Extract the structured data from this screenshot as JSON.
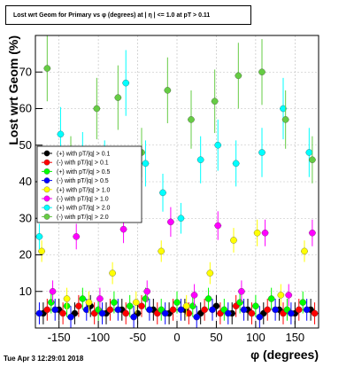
{
  "title": "Lost wrt Geom for Primary vs φ (degrees) at | η | <= 1.0 at pT > 0.11",
  "footer": "Tue Apr  3 12:29:01 2018",
  "chart_data": {
    "type": "scatter",
    "xlabel": "φ (degrees)",
    "ylabel": "Lost wrt Geom (%)",
    "xlim": [
      -180,
      180
    ],
    "ylim": [
      0,
      80
    ],
    "xticks": [
      -150,
      -100,
      -50,
      0,
      50,
      100,
      150
    ],
    "yticks": [
      10,
      20,
      30,
      40,
      50,
      60,
      70
    ],
    "grid": true,
    "legend_position": "left-center",
    "series": [
      {
        "name": "(+) with pT/|q| > 0.1",
        "color": "#000000",
        "x": [
          -170,
          -150,
          -130,
          -110,
          -90,
          -70,
          -50,
          -30,
          -10,
          10,
          30,
          50,
          70,
          90,
          110,
          130,
          150,
          170
        ],
        "y": [
          4,
          5,
          4,
          6,
          4,
          5,
          4,
          5,
          4,
          5,
          4,
          6,
          4,
          5,
          4,
          5,
          4,
          5
        ]
      },
      {
        "name": "(-) with pT/|q| > 0.1",
        "color": "#ff0000",
        "x": [
          -165,
          -145,
          -125,
          -105,
          -85,
          -65,
          -45,
          -25,
          -5,
          15,
          35,
          55,
          75,
          95,
          115,
          135,
          155,
          175
        ],
        "y": [
          5,
          4,
          6,
          4,
          5,
          4,
          6,
          4,
          5,
          4,
          5,
          4,
          6,
          4,
          5,
          4,
          5,
          4
        ]
      },
      {
        "name": "(+) with pT/|q| > 0.5",
        "color": "#00ff00",
        "x": [
          -160,
          -140,
          -120,
          -100,
          -80,
          -60,
          -40,
          -20,
          0,
          20,
          40,
          60,
          80,
          100,
          120,
          140,
          160
        ],
        "y": [
          7,
          6,
          8,
          5,
          7,
          6,
          8,
          5,
          7,
          6,
          8,
          5,
          7,
          6,
          8,
          5,
          7
        ]
      },
      {
        "name": "(-) with pT/|q| > 0.5",
        "color": "#0000ff",
        "x": [
          -175,
          -155,
          -135,
          -115,
          -95,
          -75,
          -55,
          -35,
          -15,
          5,
          25,
          45,
          65,
          85,
          105,
          125,
          145,
          165
        ],
        "y": [
          4,
          5,
          3,
          5,
          4,
          5,
          3,
          5,
          4,
          5,
          3,
          5,
          4,
          5,
          3,
          5,
          4,
          5
        ]
      },
      {
        "name": "(+) with pT/|q| > 1.0",
        "color": "#ffff00",
        "x": [
          -172,
          -140,
          -112,
          -82,
          -52,
          -20,
          12,
          42,
          72,
          102,
          132,
          162
        ],
        "y": [
          21,
          8,
          7,
          15,
          7,
          21,
          6,
          15,
          24,
          26,
          9,
          21
        ]
      },
      {
        "name": "(-) with pT/|q| > 1.0",
        "color": "#ff00ff",
        "x": [
          -158,
          -128,
          -98,
          -68,
          -38,
          -8,
          22,
          52,
          82,
          112,
          142,
          172
        ],
        "y": [
          10,
          25,
          8,
          27,
          10,
          29,
          9,
          28,
          10,
          26,
          9,
          26
        ]
      },
      {
        "name": "(+) with pT/|q| > 2.0",
        "color": "#00ffff",
        "x": [
          -175,
          -148,
          -120,
          -92,
          -65,
          -40,
          -18,
          5,
          30,
          52,
          75,
          108,
          135,
          168
        ],
        "y": [
          25,
          53,
          47,
          45,
          67,
          45,
          37,
          30,
          46,
          50,
          45,
          48,
          60,
          48
        ]
      },
      {
        "name": "(-) with pT/|q| > 2.0",
        "color": "#66cc44",
        "x": [
          -165,
          -135,
          -102,
          -75,
          -45,
          -12,
          18,
          48,
          78,
          108,
          138,
          172
        ],
        "y": [
          71,
          46,
          60,
          63,
          48,
          65,
          57,
          62,
          69,
          70,
          57,
          46
        ]
      }
    ]
  }
}
